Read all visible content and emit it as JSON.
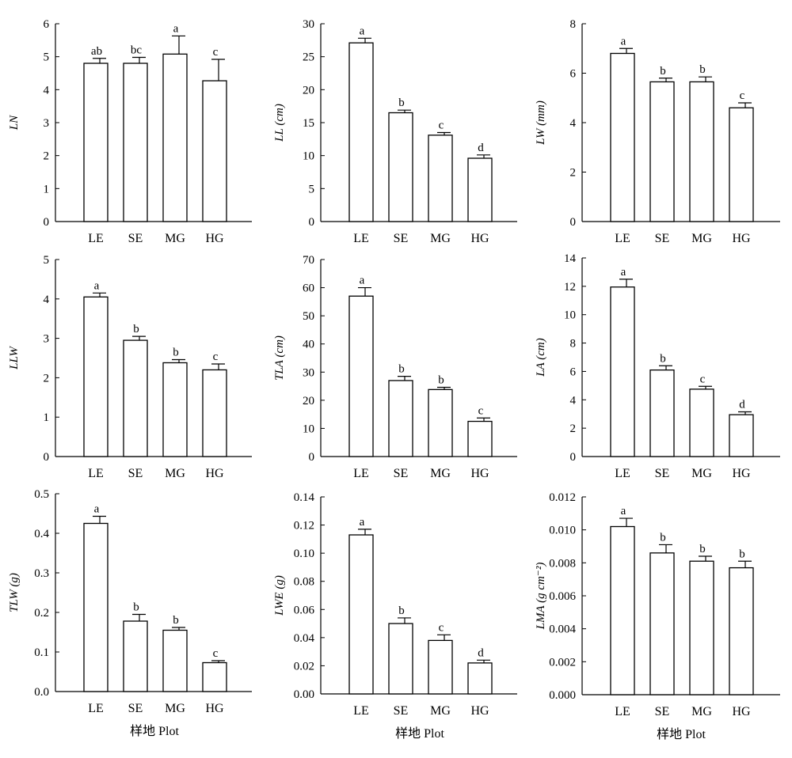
{
  "chart_data": [
    {
      "type": "bar",
      "ylabel": "LN",
      "categories": [
        "LE",
        "SE",
        "MG",
        "HG"
      ],
      "values": [
        4.8,
        4.8,
        5.08,
        4.27
      ],
      "errors": [
        0.15,
        0.18,
        0.55,
        0.65
      ],
      "letters": [
        "ab",
        "bc",
        "a",
        "c"
      ],
      "ylim": [
        0,
        6
      ],
      "yticks": [
        "0",
        "1",
        "2",
        "3",
        "4",
        "5",
        "6"
      ],
      "xlabel": ""
    },
    {
      "type": "bar",
      "ylabel": "LL (cm)",
      "categories": [
        "LE",
        "SE",
        "MG",
        "HG"
      ],
      "values": [
        27.1,
        16.5,
        13.1,
        9.6
      ],
      "errors": [
        0.7,
        0.4,
        0.4,
        0.5
      ],
      "letters": [
        "a",
        "b",
        "c",
        "d"
      ],
      "ylim": [
        0,
        30
      ],
      "yticks": [
        "0",
        "5",
        "10",
        "15",
        "20",
        "25",
        "30"
      ],
      "xlabel": ""
    },
    {
      "type": "bar",
      "ylabel": "LW (mm)",
      "categories": [
        "LE",
        "SE",
        "MG",
        "HG"
      ],
      "values": [
        6.8,
        5.65,
        5.65,
        4.6
      ],
      "errors": [
        0.2,
        0.15,
        0.2,
        0.2
      ],
      "letters": [
        "a",
        "b",
        "b",
        "c"
      ],
      "ylim": [
        0,
        8
      ],
      "yticks": [
        "0",
        "2",
        "4",
        "6",
        "8"
      ],
      "xlabel": ""
    },
    {
      "type": "bar",
      "ylabel": "LLW",
      "categories": [
        "LE",
        "SE",
        "MG",
        "HG"
      ],
      "values": [
        4.05,
        2.95,
        2.38,
        2.2
      ],
      "errors": [
        0.1,
        0.1,
        0.08,
        0.15
      ],
      "letters": [
        "a",
        "b",
        "b",
        "c"
      ],
      "ylim": [
        0,
        5
      ],
      "yticks": [
        "0",
        "1",
        "2",
        "3",
        "4",
        "5"
      ],
      "xlabel": ""
    },
    {
      "type": "bar",
      "ylabel": "TLA (cm)",
      "categories": [
        "LE",
        "SE",
        "MG",
        "HG"
      ],
      "values": [
        57,
        27,
        23.8,
        12.5
      ],
      "errors": [
        3,
        1.5,
        0.8,
        1.2
      ],
      "letters": [
        "a",
        "b",
        "b",
        "c"
      ],
      "ylim": [
        0,
        70
      ],
      "yticks": [
        "0",
        "10",
        "20",
        "30",
        "40",
        "50",
        "60",
        "70"
      ],
      "xlabel": ""
    },
    {
      "type": "bar",
      "ylabel": "LA (cm)",
      "categories": [
        "LE",
        "SE",
        "MG",
        "HG"
      ],
      "values": [
        11.95,
        6.1,
        4.75,
        2.95
      ],
      "errors": [
        0.55,
        0.3,
        0.2,
        0.2
      ],
      "letters": [
        "a",
        "b",
        "c",
        "d"
      ],
      "ylim": [
        0,
        14
      ],
      "yticks": [
        "0",
        "2",
        "4",
        "6",
        "8",
        "10",
        "12",
        "14"
      ],
      "xlabel": ""
    },
    {
      "type": "bar",
      "ylabel": "TLW (g)",
      "categories": [
        "LE",
        "SE",
        "MG",
        "HG"
      ],
      "values": [
        0.425,
        0.178,
        0.155,
        0.073
      ],
      "errors": [
        0.018,
        0.017,
        0.007,
        0.005
      ],
      "letters": [
        "a",
        "b",
        "b",
        "c"
      ],
      "ylim": [
        0,
        0.5
      ],
      "yticks": [
        "0.0",
        "0.1",
        "0.2",
        "0.3",
        "0.4",
        "0.5"
      ],
      "xlabel": "样地 Plot"
    },
    {
      "type": "bar",
      "ylabel": "LWE (g)",
      "categories": [
        "LE",
        "SE",
        "MG",
        "HG"
      ],
      "values": [
        0.113,
        0.05,
        0.038,
        0.022
      ],
      "errors": [
        0.004,
        0.004,
        0.004,
        0.002
      ],
      "letters": [
        "a",
        "b",
        "c",
        "d"
      ],
      "ylim": [
        0,
        0.14
      ],
      "yticks": [
        "0.00",
        "0.02",
        "0.04",
        "0.06",
        "0.08",
        "0.10",
        "0.12",
        "0.14"
      ],
      "xlabel": "样地 Plot"
    },
    {
      "type": "bar",
      "ylabel": "LMA (g cm⁻²)",
      "categories": [
        "LE",
        "SE",
        "MG",
        "HG"
      ],
      "values": [
        0.0102,
        0.0086,
        0.0081,
        0.0077
      ],
      "errors": [
        0.0005,
        0.0005,
        0.0003,
        0.0004
      ],
      "letters": [
        "a",
        "b",
        "b",
        "b"
      ],
      "ylim": [
        0,
        0.012
      ],
      "yticks": [
        "0.000",
        "0.002",
        "0.004",
        "0.006",
        "0.008",
        "0.010",
        "0.012"
      ],
      "xlabel": "样地 Plot"
    }
  ]
}
